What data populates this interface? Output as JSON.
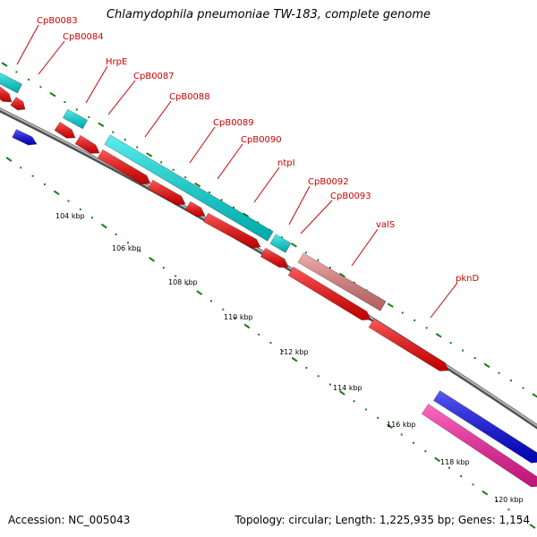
{
  "title": "Chlamydophila pneumoniae TW-183, complete genome",
  "footer": {
    "accession": "Accession: NC_005043",
    "summary": "Topology: circular; Length: 1,225,935 bp; Genes: 1,154"
  },
  "colors": {
    "backbone": "#808080",
    "gene_label": "#cc0000",
    "tick": "#1a7a1a",
    "cyan": "#00e5e5",
    "red": "#ff0000",
    "blue": "#0000ee",
    "pink": "#ff1aa0",
    "salmon": "#ec8080"
  },
  "ruler": {
    "unit": "kbp",
    "labels": [
      "104 kbp",
      "106 kbp",
      "108 kbp",
      "110 kbp",
      "112 kbp",
      "114 kbp",
      "116 kbp",
      "118 kbp",
      "120 kbp"
    ]
  },
  "gene_labels": [
    "CpB0083",
    "CpB0084",
    "HrpE",
    "CpB0087",
    "CpB0088",
    "CpB0089",
    "CpB0090",
    "ntpI",
    "CpB0092",
    "CpB0093",
    "valS",
    "pknD"
  ]
}
